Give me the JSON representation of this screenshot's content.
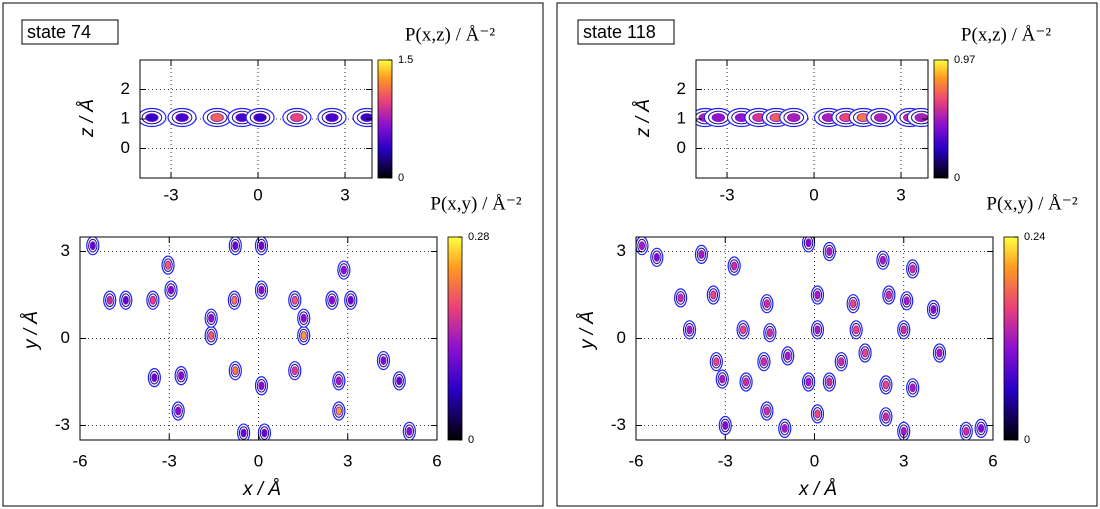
{
  "chart_data": [
    {
      "type": "contour",
      "annotation": "state 74",
      "ylabel": "z / Å",
      "colorbar_title": "P(x,z) / Å⁻²",
      "xlim": [
        -4.07,
        3.93
      ],
      "ylim": [
        -1,
        3
      ],
      "xticks": [
        -3,
        0,
        3
      ],
      "yticks": [
        0,
        1,
        2
      ],
      "grid": true,
      "clim": [
        0,
        1.5
      ],
      "cticks": [
        0,
        1.5
      ],
      "x": [
        -3.66,
        -2.62,
        -1.41,
        -0.55,
        0.07,
        1.34,
        2.55,
        3.76
      ],
      "y": [
        1.05,
        1.05,
        1.05,
        1.05,
        1.05,
        1.05,
        1.05,
        1.05
      ],
      "values": [
        0.4,
        0.45,
        1.1,
        0.45,
        0.4,
        1.0,
        0.45,
        0.4
      ]
    },
    {
      "type": "contour",
      "xlabel": "x / Å",
      "ylabel": "y / Å",
      "colorbar_title": "P(x,y) / Å⁻²",
      "xlim": [
        -6,
        6
      ],
      "ylim": [
        -3.5,
        3.5
      ],
      "xticks": [
        -6,
        -3,
        0,
        3,
        6
      ],
      "yticks": [
        -3,
        0,
        3
      ],
      "grid": true,
      "clim": [
        0,
        0.28
      ],
      "cticks": [
        0,
        0.28
      ],
      "x": [
        -3.04,
        -2.94,
        -3.55,
        -4.46,
        -5.0,
        -0.81,
        0.1,
        1.22,
        2.47,
        3.1,
        -1.59,
        -1.59,
        1.52,
        1.52,
        -0.78,
        0.1,
        1.22,
        -2.6,
        -3.5,
        2.7,
        2.7,
        4.2,
        4.73,
        -2.7,
        -0.78,
        0.1,
        -5.57,
        2.87,
        5.07,
        -0.5,
        0.2
      ],
      "y": [
        2.53,
        1.67,
        1.32,
        1.32,
        1.32,
        1.32,
        1.67,
        1.32,
        1.32,
        1.32,
        0.1,
        0.7,
        0.1,
        0.7,
        -1.11,
        -1.63,
        -1.11,
        -1.28,
        -1.35,
        -2.5,
        -1.46,
        -0.76,
        -1.46,
        -2.5,
        3.2,
        3.2,
        3.2,
        2.36,
        -3.2,
        -3.26,
        -3.26
      ],
      "values": [
        0.2,
        0.12,
        0.18,
        0.1,
        0.16,
        0.22,
        0.12,
        0.2,
        0.12,
        0.1,
        0.2,
        0.12,
        0.24,
        0.12,
        0.22,
        0.12,
        0.18,
        0.12,
        0.1,
        0.24,
        0.14,
        0.12,
        0.1,
        0.12,
        0.1,
        0.1,
        0.1,
        0.12,
        0.12,
        0.1,
        0.1
      ]
    },
    {
      "type": "contour",
      "annotation": "state 118",
      "ylabel": "z / Å",
      "colorbar_title": "P(x,z) / Å⁻²",
      "xlim": [
        -4.07,
        3.93
      ],
      "ylim": [
        -1,
        3
      ],
      "xticks": [
        -3,
        0,
        3
      ],
      "yticks": [
        0,
        1,
        2
      ],
      "grid": true,
      "clim": [
        0,
        0.97
      ],
      "cticks": [
        0,
        0.97
      ],
      "x": [
        -3.75,
        -3.3,
        -2.5,
        -1.9,
        -1.3,
        -0.7,
        0.5,
        1.1,
        1.7,
        2.3,
        3.3,
        3.7
      ],
      "y": [
        1.05,
        1.05,
        1.05,
        1.05,
        1.05,
        1.05,
        1.05,
        1.05,
        1.05,
        1.05,
        1.05,
        1.05
      ],
      "values": [
        0.5,
        0.45,
        0.45,
        0.6,
        0.7,
        0.5,
        0.5,
        0.65,
        0.75,
        0.5,
        0.55,
        0.5
      ]
    },
    {
      "type": "contour",
      "xlabel": "x / Å",
      "ylabel": "y / Å",
      "colorbar_title": "P(x,y) / Å⁻²",
      "xlim": [
        -6,
        6
      ],
      "ylim": [
        -3.5,
        3.5
      ],
      "xticks": [
        -6,
        -3,
        0,
        3,
        6
      ],
      "yticks": [
        -3,
        0,
        3
      ],
      "grid": true,
      "clim": [
        0,
        0.24
      ],
      "cticks": [
        0,
        0.24
      ],
      "x": [
        -5.8,
        -5.3,
        -3.8,
        -2.7,
        -0.2,
        0.5,
        2.3,
        3.3,
        -4.5,
        -3.4,
        -1.6,
        0.1,
        1.3,
        2.5,
        3.1,
        4.0,
        -4.2,
        -2.4,
        -1.5,
        1.4,
        0.1,
        3.0,
        4.2,
        -3.3,
        -1.7,
        -0.9,
        0.9,
        1.7,
        -3.1,
        -2.3,
        -0.2,
        0.5,
        2.4,
        3.3,
        -1.6,
        0.1,
        2.4,
        -3.0,
        -1.0,
        3.0,
        5.1,
        5.6
      ],
      "y": [
        3.2,
        2.8,
        2.9,
        2.5,
        3.3,
        3.0,
        2.7,
        2.4,
        1.4,
        1.5,
        1.2,
        1.5,
        1.2,
        1.5,
        1.3,
        1.0,
        0.3,
        0.3,
        0.2,
        0.3,
        0.3,
        0.3,
        -0.5,
        -0.8,
        -0.8,
        -0.6,
        -0.8,
        -0.5,
        -1.4,
        -1.5,
        -1.5,
        -1.5,
        -1.6,
        -1.7,
        -2.5,
        -2.6,
        -2.7,
        -3.0,
        -3.1,
        -3.2,
        -3.2,
        -3.1
      ],
      "values": [
        0.12,
        0.1,
        0.12,
        0.14,
        0.1,
        0.12,
        0.12,
        0.14,
        0.14,
        0.16,
        0.14,
        0.12,
        0.16,
        0.14,
        0.12,
        0.1,
        0.12,
        0.16,
        0.14,
        0.16,
        0.12,
        0.14,
        0.12,
        0.16,
        0.14,
        0.12,
        0.14,
        0.16,
        0.12,
        0.14,
        0.12,
        0.14,
        0.16,
        0.12,
        0.14,
        0.16,
        0.14,
        0.1,
        0.12,
        0.12,
        0.14,
        0.1
      ]
    }
  ]
}
